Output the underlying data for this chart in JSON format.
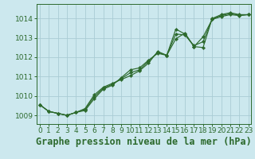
{
  "title": "Graphe pression niveau de la mer (hPa)",
  "bg_color": "#cce8ee",
  "line_color": "#2d6a2d",
  "grid_color": "#aaccd4",
  "x_ticks": [
    0,
    1,
    2,
    3,
    4,
    5,
    6,
    7,
    8,
    9,
    10,
    11,
    12,
    13,
    14,
    15,
    16,
    17,
    18,
    19,
    20,
    21,
    22,
    23
  ],
  "y_ticks": [
    1009,
    1010,
    1011,
    1012,
    1013,
    1014
  ],
  "xlim": [
    -0.3,
    23.3
  ],
  "ylim": [
    1008.55,
    1014.75
  ],
  "series": [
    [
      1009.55,
      1009.2,
      1009.1,
      1009.0,
      1009.15,
      1009.35,
      1010.05,
      1010.45,
      1010.65,
      1010.85,
      1011.05,
      1011.3,
      1011.7,
      1012.3,
      1012.1,
      1013.45,
      1013.2,
      1012.55,
      1012.5,
      1014.0,
      1014.2,
      1014.3,
      1014.2,
      1014.2
    ],
    [
      1009.55,
      1009.2,
      1009.1,
      1009.0,
      1009.15,
      1009.25,
      1009.85,
      1010.35,
      1010.55,
      1010.95,
      1011.35,
      1011.45,
      1011.85,
      1012.2,
      1012.1,
      1012.95,
      1013.25,
      1012.55,
      1013.05,
      1013.95,
      1014.1,
      1014.2,
      1014.15,
      1014.2
    ],
    [
      1009.55,
      1009.2,
      1009.1,
      1009.0,
      1009.15,
      1009.3,
      1009.95,
      1010.4,
      1010.6,
      1010.9,
      1011.2,
      1011.35,
      1011.8,
      1012.25,
      1012.1,
      1013.2,
      1013.15,
      1012.6,
      1012.8,
      1013.97,
      1014.15,
      1014.25,
      1014.17,
      1014.2
    ]
  ],
  "title_fontsize": 8.5,
  "tick_fontsize": 6.5
}
